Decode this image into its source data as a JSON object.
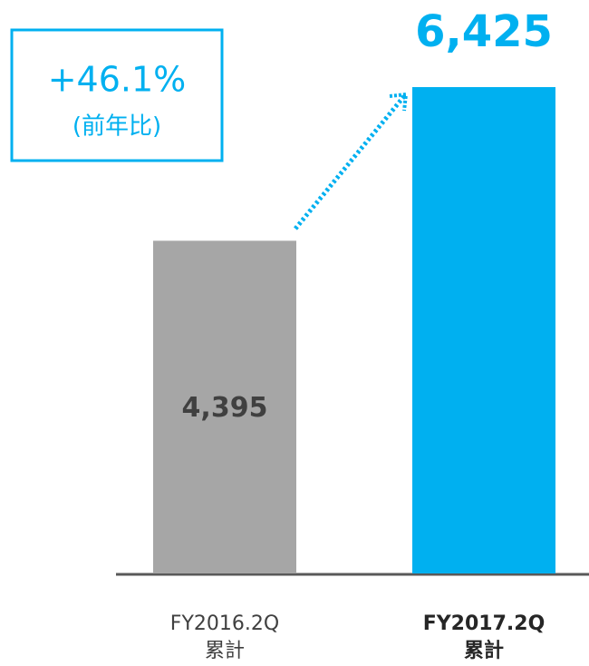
{
  "chart_data": {
    "type": "bar",
    "categories": [
      [
        "FY2016.2Q",
        "累計"
      ],
      [
        "FY2017.2Q",
        "累計"
      ]
    ],
    "values": [
      4395,
      6425
    ],
    "value_labels": [
      "4,395",
      "6,425"
    ],
    "colors": [
      "#a6a6a6",
      "#00b0f0"
    ],
    "ylim": [
      0,
      7000
    ],
    "annotation": {
      "text": "+46.1%",
      "subtext": "(前年比)"
    }
  }
}
